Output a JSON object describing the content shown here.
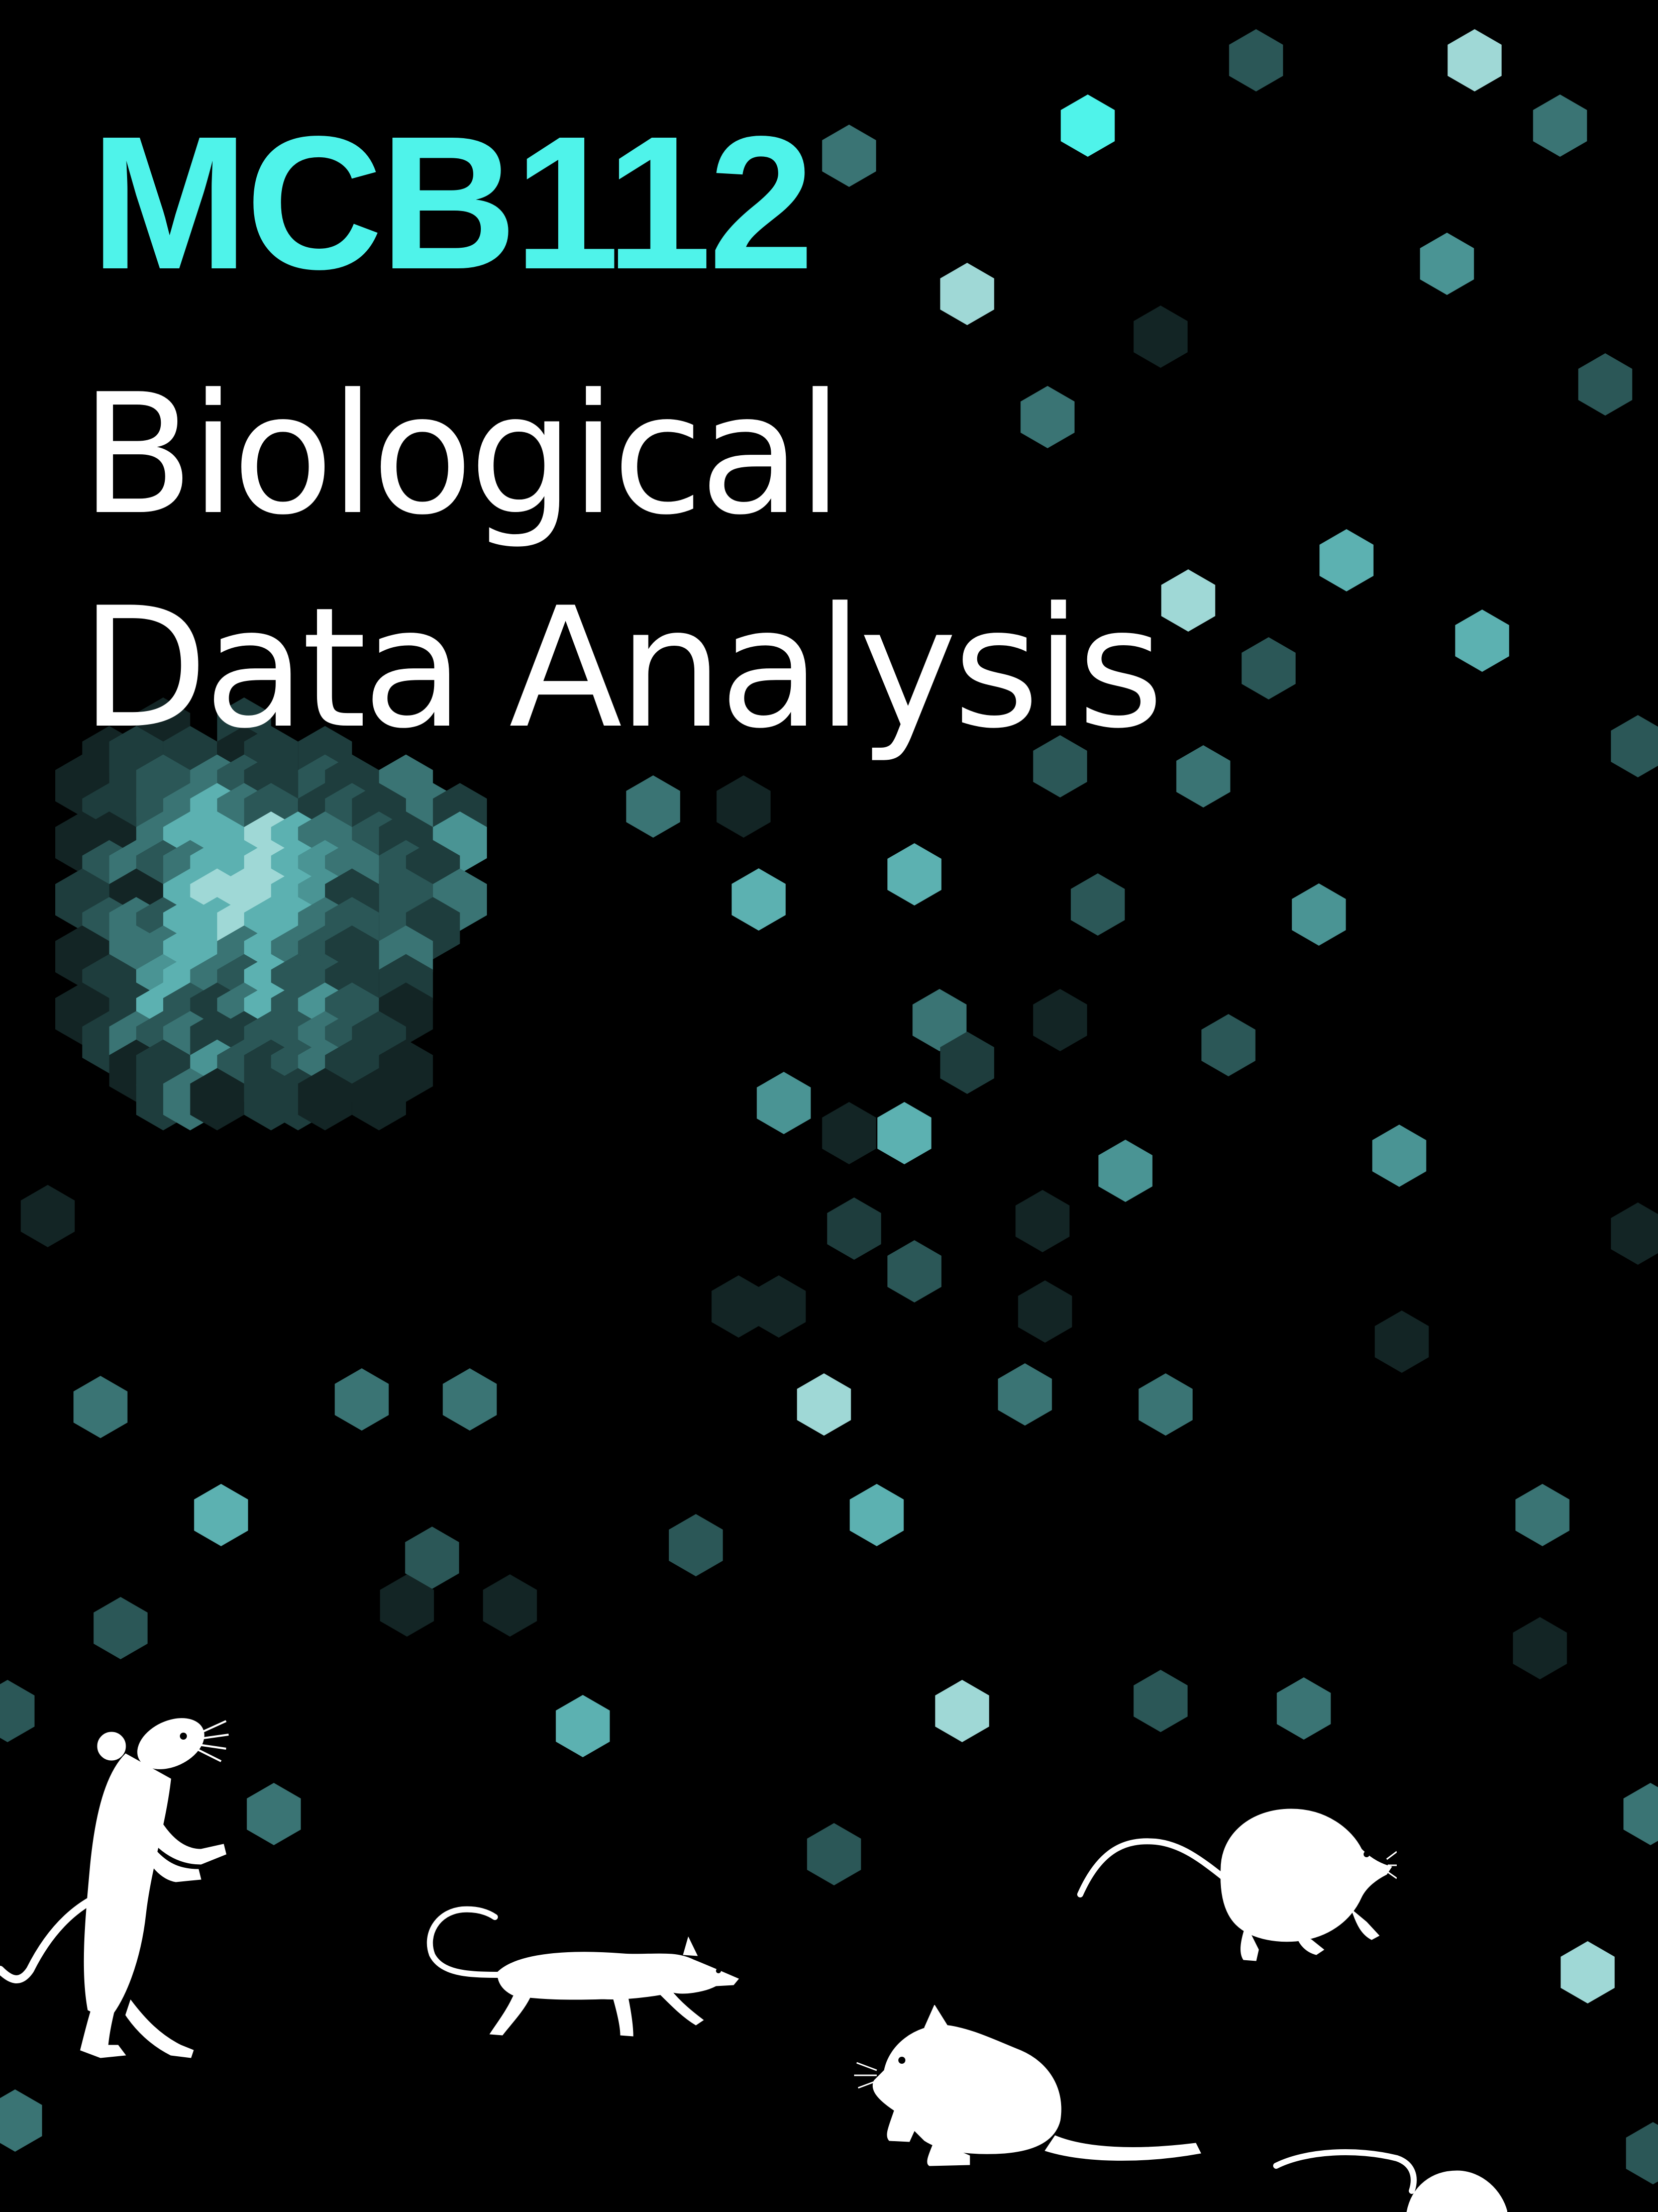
{
  "cover": {
    "course_code": "MCB112",
    "title_line_1": "Biological",
    "title_line_2": "Data Analysis"
  },
  "colors": {
    "background": "#000000",
    "course_code": "#4ff3ea",
    "title": "#ffffff",
    "hex_shades": [
      "#132525",
      "#1e3d3d",
      "#2b5757",
      "#3a7474",
      "#4a9494",
      "#5cb1b1",
      "#9fd8d6",
      "#4ff3ea"
    ],
    "silhouette": "#ffffff"
  },
  "decorations": {
    "pattern": "hexagon-scatter",
    "silhouettes": [
      "standing-rodent-icon",
      "running-rodent-icon",
      "sitting-rodent-icon",
      "leaping-rodent-icon",
      "partial-rodent-icon"
    ]
  }
}
